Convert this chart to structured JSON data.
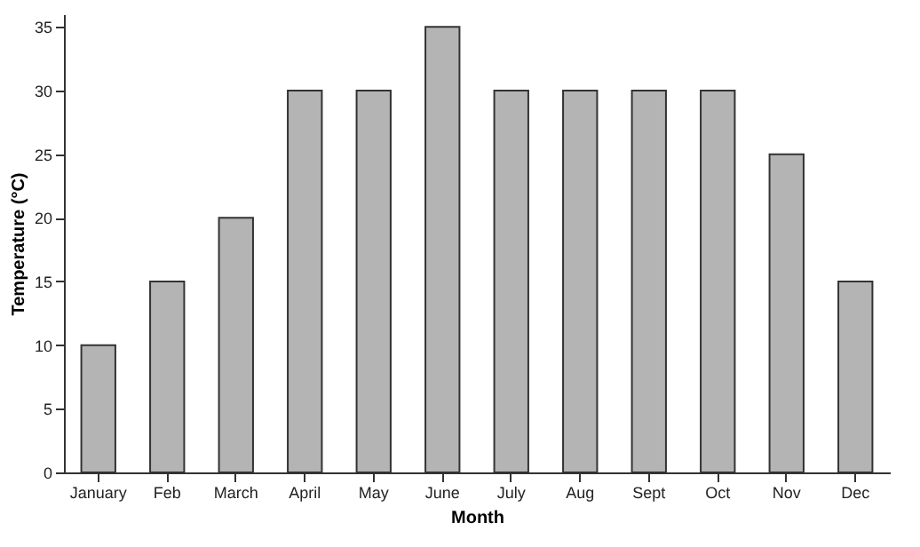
{
  "chart_data": {
    "type": "bar",
    "xlabel": "Month",
    "ylabel": "Temperature (°C)",
    "categories": [
      "January",
      "Feb",
      "March",
      "April",
      "May",
      "June",
      "July",
      "Aug",
      "Sept",
      "Oct",
      "Nov",
      "Dec"
    ],
    "values": [
      10,
      15,
      20,
      30,
      30,
      35,
      30,
      30,
      30,
      30,
      25,
      15
    ],
    "color": "#b4b4b4",
    "ylim": [
      0,
      36
    ],
    "yticks": [
      0,
      5,
      10,
      15,
      20,
      25,
      30,
      35
    ],
    "grid": false
  }
}
